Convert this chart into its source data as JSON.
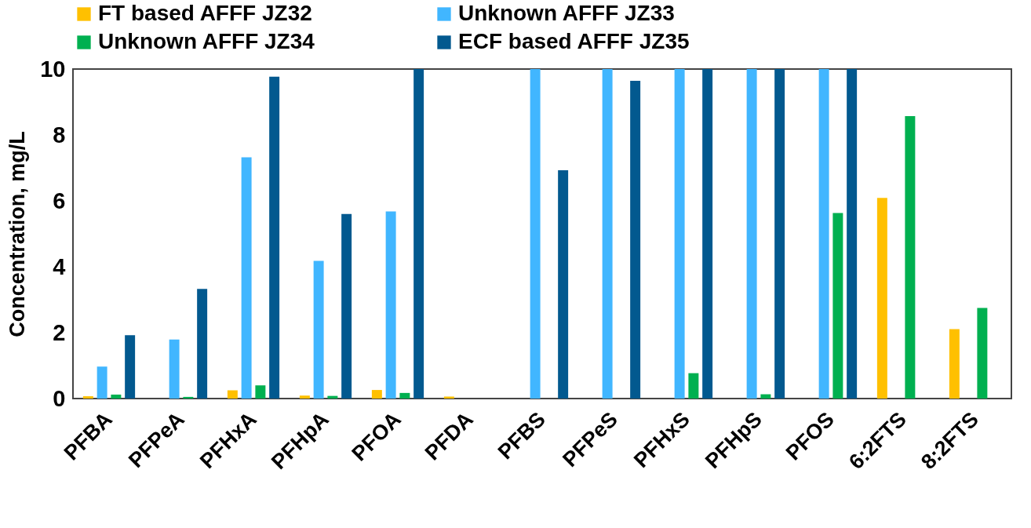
{
  "chart_data": {
    "type": "bar",
    "ylabel": "Concentration, mg/L",
    "categories": [
      "PFBA",
      "PFPeA",
      "PFHxA",
      "PFHpA",
      "PFOA",
      "PFDA",
      "PFBS",
      "PFPeS",
      "PFHxS",
      "PFHpS",
      "PFOS",
      "6:2FTS",
      "8:2FTS"
    ],
    "series": [
      {
        "name": "FT based AFFF JZ32",
        "color": "#ffc000",
        "values": [
          0.07,
          null,
          0.25,
          0.09,
          0.26,
          0.06,
          null,
          null,
          null,
          null,
          null,
          6.09,
          2.11
        ]
      },
      {
        "name": "Unknown AFFF JZ33",
        "color": "#41b6ff",
        "values": [
          0.97,
          1.79,
          7.32,
          4.18,
          5.68,
          null,
          10,
          10,
          10,
          10,
          10,
          null,
          null
        ]
      },
      {
        "name": "Unknown AFFF JZ34",
        "color": "#00b050",
        "values": [
          0.12,
          0.05,
          0.4,
          0.08,
          0.17,
          null,
          null,
          null,
          0.77,
          0.13,
          5.63,
          8.57,
          2.75
        ]
      },
      {
        "name": "ECF based AFFF JZ35",
        "color": "#02598f",
        "values": [
          1.92,
          3.33,
          9.77,
          5.6,
          10,
          null,
          6.93,
          9.64,
          10,
          10,
          10,
          null,
          null
        ]
      }
    ],
    "ylim": [
      0,
      10
    ],
    "yticks": [
      0,
      2,
      4,
      6,
      8,
      10
    ],
    "grid": false,
    "legend": "top"
  }
}
